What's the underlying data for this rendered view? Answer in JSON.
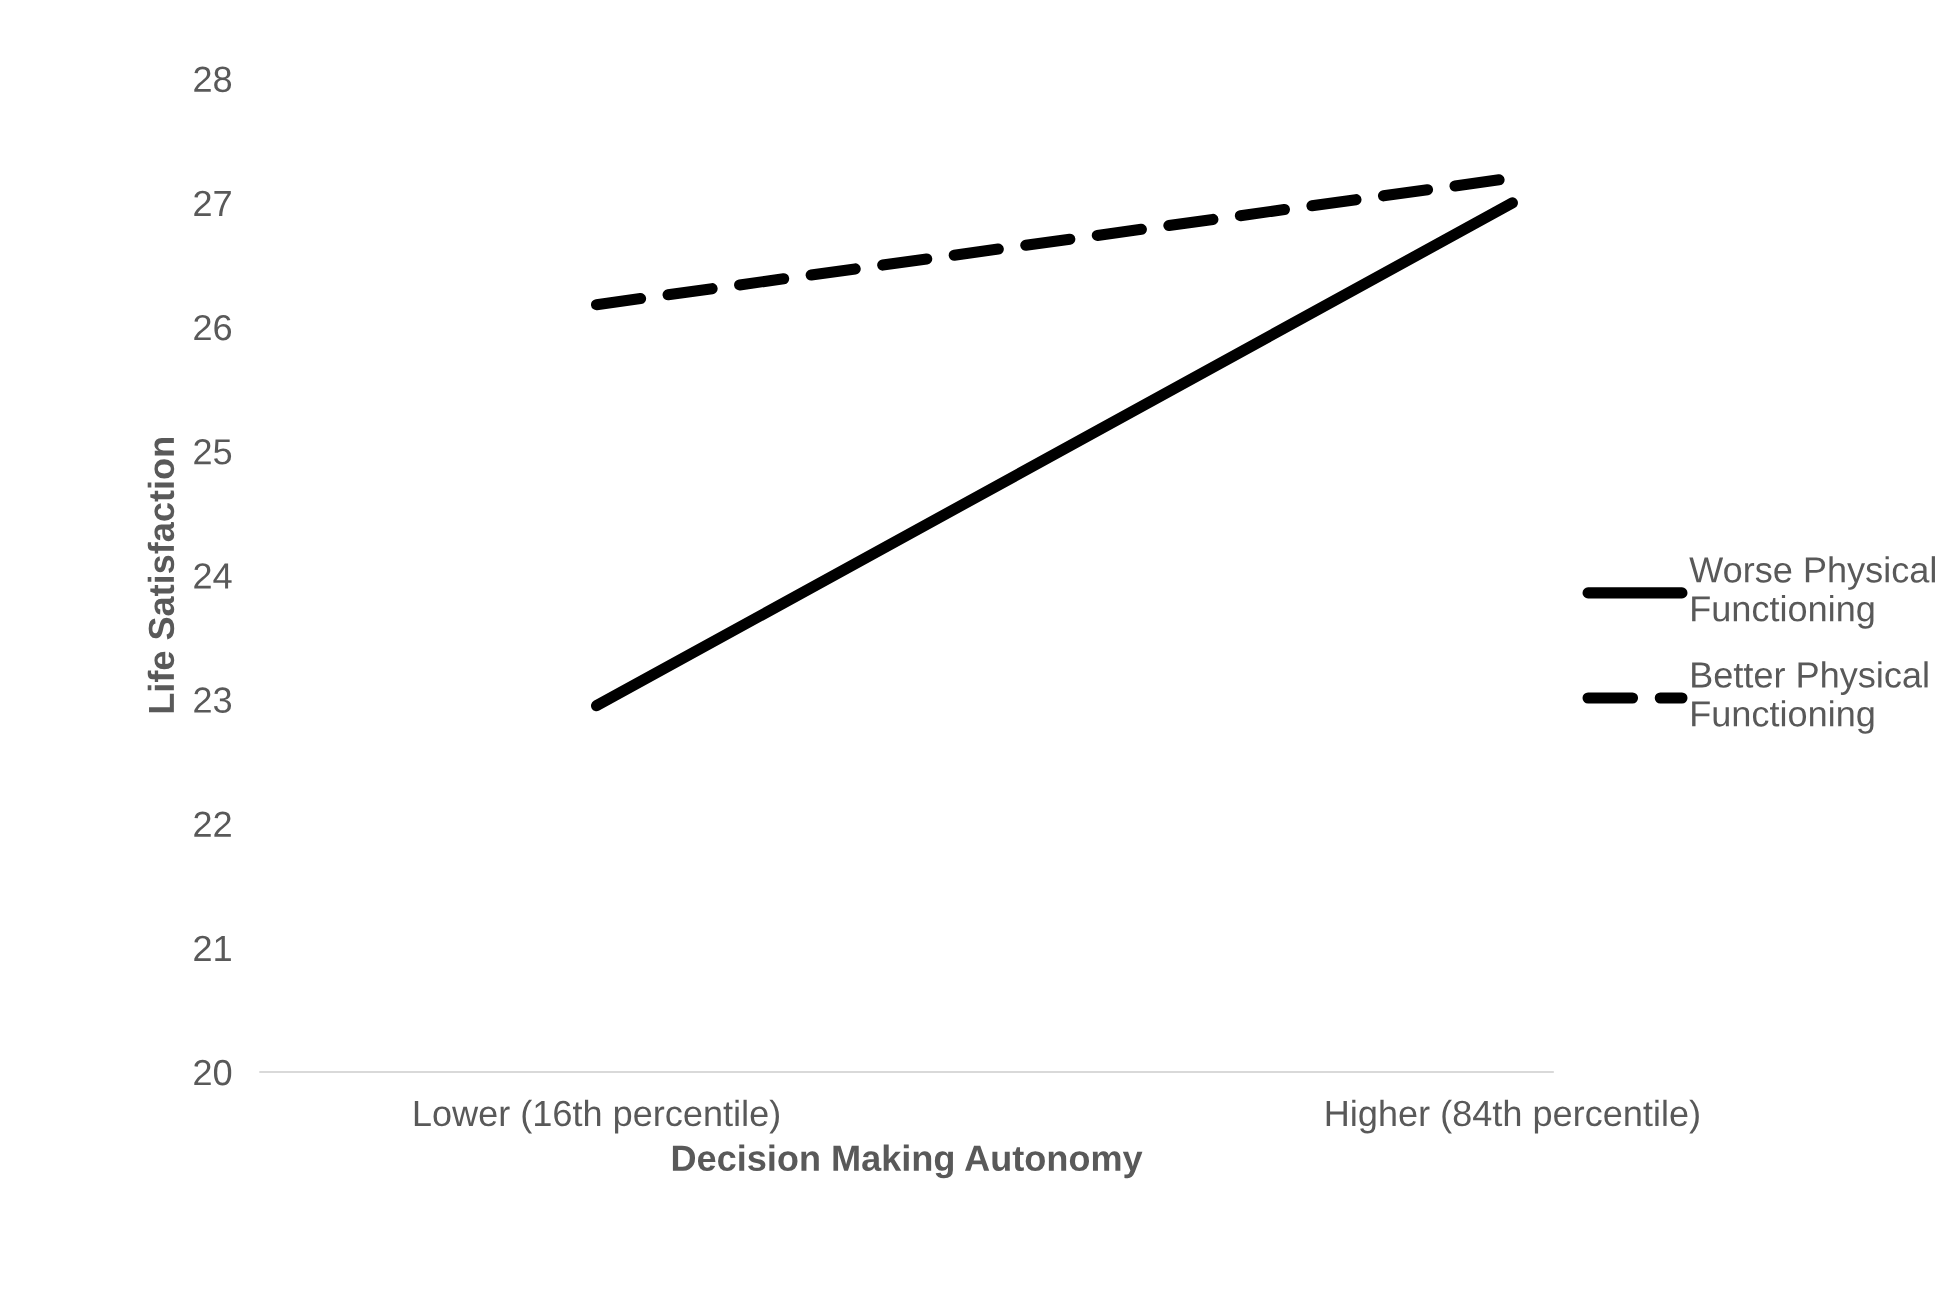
{
  "chart_data": {
    "type": "line",
    "xlabel": "Decision Making Autonomy",
    "ylabel": "Life Satisfaction",
    "categories": [
      "Lower (16th percentile)",
      "Higher (84th percentile)"
    ],
    "series": [
      {
        "name": "Worse Physical\nFunctioning",
        "color": "#000000",
        "values": [
          22.95,
          27.0
        ],
        "line_style": "solid"
      },
      {
        "name": "Better Physical\nFunctioning",
        "color": "#000000",
        "values": [
          26.18,
          27.2
        ],
        "line_style": "dashed"
      }
    ],
    "ylim": [
      20,
      28
    ],
    "yticks": [
      20,
      21,
      22,
      23,
      24,
      25,
      26,
      27,
      28
    ],
    "grid": false,
    "legend": "right",
    "marker": "none"
  }
}
